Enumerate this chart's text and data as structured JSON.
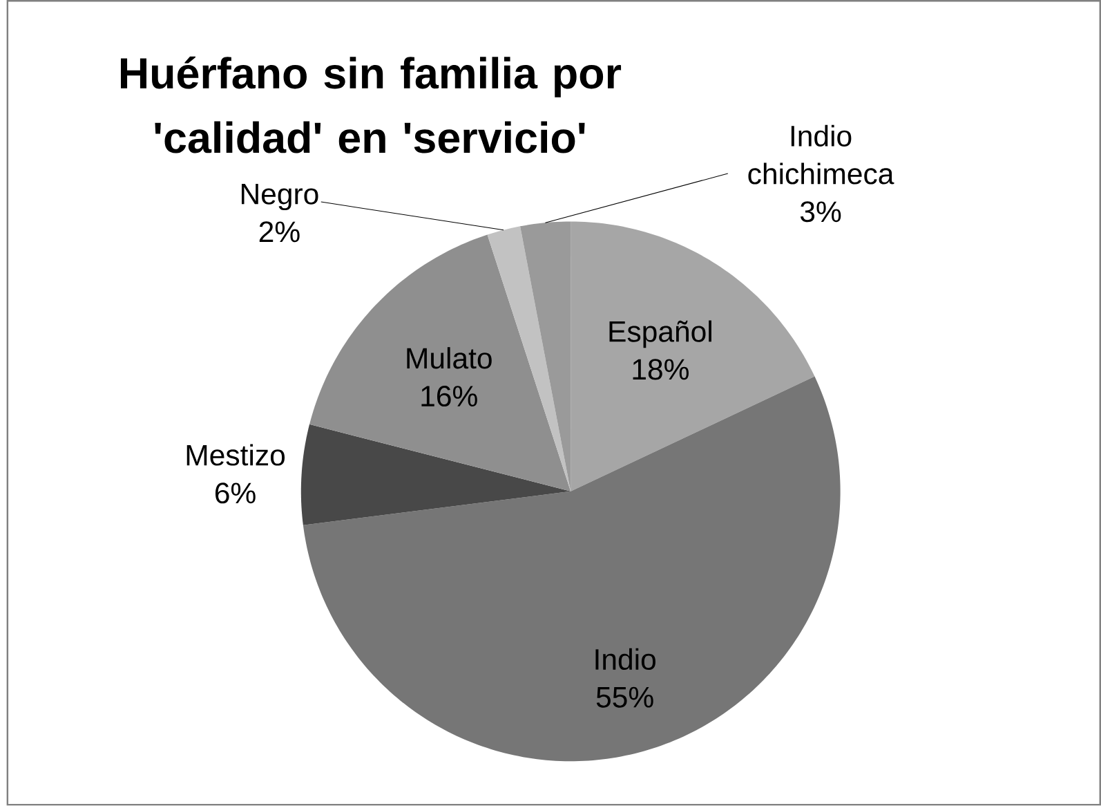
{
  "chart_data": {
    "type": "pie",
    "title": "Huérfano sin familia por 'calidad' en 'servicio'",
    "categories": [
      "Español",
      "Indio",
      "Mestizo",
      "Mulato",
      "Negro",
      "Indio chichimeca"
    ],
    "values": [
      18,
      55,
      6,
      16,
      2,
      3
    ],
    "value_labels": [
      "18%",
      "55%",
      "6%",
      "16%",
      "2%",
      "3%"
    ],
    "colors": [
      "#a6a6a6",
      "#767676",
      "#484848",
      "#8f8f8f",
      "#c2c2c2",
      "#9a9a9a"
    ]
  }
}
